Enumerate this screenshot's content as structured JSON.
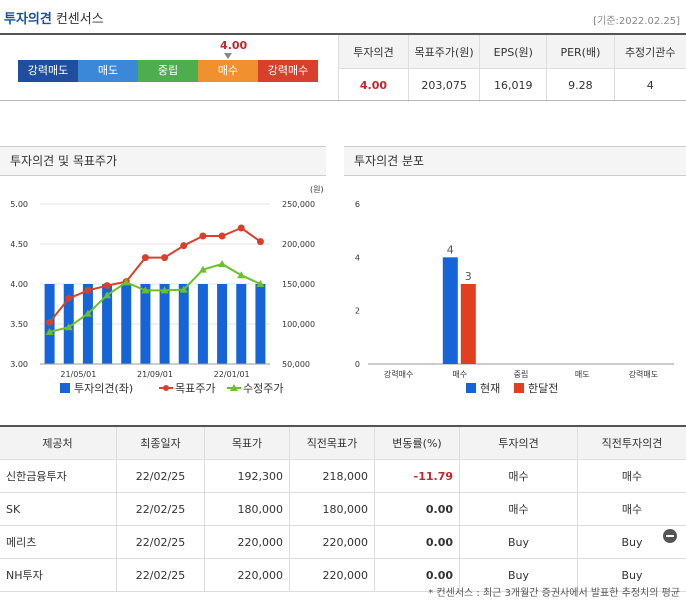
{
  "header": {
    "title_main": "투자의견",
    "title_sub": "컨센서스",
    "date_label": "[기준:2022.02.25]"
  },
  "gauge": {
    "labels": [
      "강력매도",
      "매도",
      "중립",
      "매수",
      "강력매수"
    ],
    "colors": [
      "#1f4e9e",
      "#3b87d8",
      "#4cae4c",
      "#f0902f",
      "#d9402c"
    ],
    "value": "4.00",
    "value_numeric": 4.0
  },
  "summary": {
    "headers": [
      "투자의견",
      "목표주가(원)",
      "EPS(원)",
      "PER(배)",
      "추정기관수"
    ],
    "values": [
      "4.00",
      "203,075",
      "16,019",
      "9.28",
      "4"
    ]
  },
  "chart1": {
    "title": "투자의견 및 목표주가"
  },
  "chart2": {
    "title": "투자의견 분포"
  },
  "chart_data": [
    {
      "type": "bar+line",
      "title": "투자의견 및 목표주가",
      "x_ticks": [
        "21/05/01",
        "21/09/01",
        "22/01/01"
      ],
      "y_left_ticks": [
        "5.00",
        "4.50",
        "4.00",
        "3.50",
        "3.00"
      ],
      "y_left_range": [
        3.0,
        5.0
      ],
      "y_right_unit": "(원)",
      "y_right_ticks": [
        "250,000",
        "200,000",
        "150,000",
        "100,000",
        "50,000"
      ],
      "y_right_range": [
        50000,
        250000
      ],
      "legend": [
        "투자의견(좌)",
        "목표주가",
        "수정주가"
      ],
      "colors": [
        "#1565d8",
        "#d9402c",
        "#6cc02a"
      ],
      "opinion": [
        4,
        4,
        4,
        4,
        4,
        4,
        4,
        4,
        4,
        4,
        4,
        4
      ],
      "target_price": [
        102000,
        132000,
        142000,
        148000,
        153000,
        183000,
        183000,
        198000,
        210000,
        210000,
        220000,
        203000
      ],
      "adj_price": [
        90000,
        96000,
        113000,
        136000,
        152000,
        142000,
        142000,
        143000,
        168000,
        175000,
        161000,
        150000
      ]
    },
    {
      "type": "bar",
      "title": "투자의견 분포",
      "categories": [
        "강력매수",
        "매수",
        "중립",
        "매도",
        "강력매도"
      ],
      "y_ticks": [
        "6",
        "4",
        "2",
        "0"
      ],
      "ylim": [
        0,
        6
      ],
      "series": [
        {
          "name": "현재",
          "values": [
            0,
            4,
            0,
            0,
            0
          ],
          "labels": [
            "",
            "4",
            "",
            "",
            ""
          ]
        },
        {
          "name": "한달전",
          "values": [
            0,
            3,
            0,
            0,
            0
          ],
          "labels": [
            "",
            "3",
            "",
            "",
            ""
          ]
        }
      ],
      "colors": [
        "#1565d8",
        "#e0401f"
      ]
    }
  ],
  "table": {
    "headers": [
      "제공처",
      "최종일자",
      "목표가",
      "직전목표가",
      "변동률(%)",
      "투자의견",
      "직전투자의견"
    ],
    "rows": [
      [
        "신한금융투자",
        "22/02/25",
        "192,300",
        "218,000",
        "-11.79",
        "매수",
        "매수"
      ],
      [
        "SK",
        "22/02/25",
        "180,000",
        "180,000",
        "0.00",
        "매수",
        "매수"
      ],
      [
        "메리츠",
        "22/02/25",
        "220,000",
        "220,000",
        "0.00",
        "Buy",
        "Buy"
      ],
      [
        "NH투자",
        "22/02/25",
        "220,000",
        "220,000",
        "0.00",
        "Buy",
        "Buy"
      ]
    ]
  },
  "footnote": "* 컨센서스 : 최근 3개월간 증권사에서 발표한 추정치의 평균"
}
